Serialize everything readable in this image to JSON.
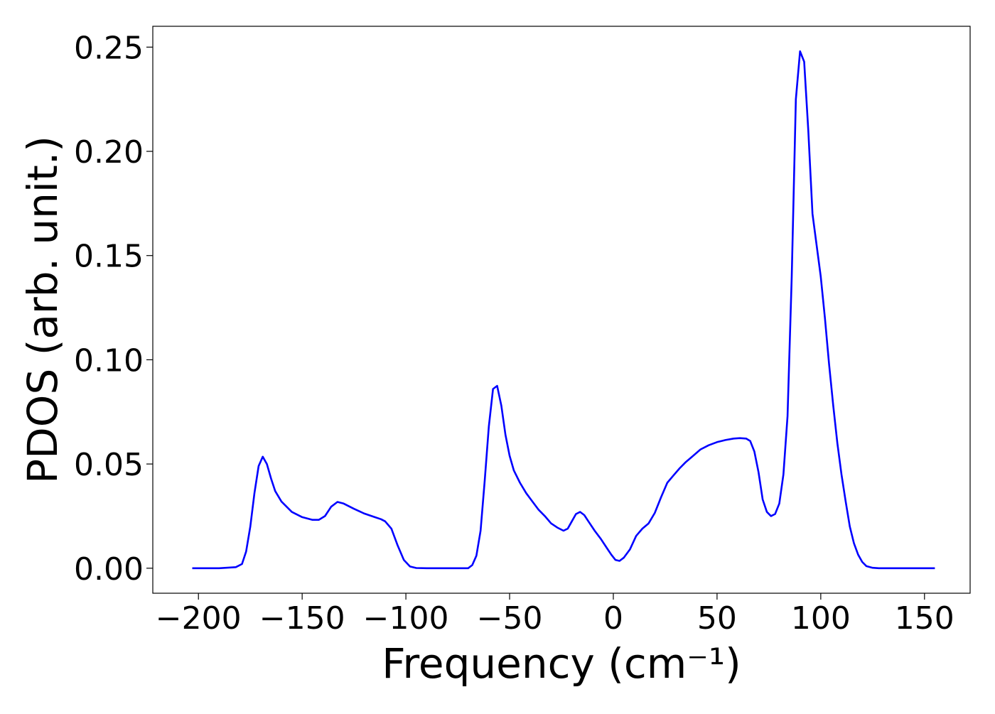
{
  "chart_data": {
    "type": "line",
    "title": "",
    "xlabel": "Frequency (cm⁻¹)",
    "ylabel": "PDOS (arb. unit.)",
    "xlim": [
      -222,
      172
    ],
    "ylim": [
      -0.012,
      0.26
    ],
    "xticks": [
      -200,
      -150,
      -100,
      -50,
      0,
      50,
      100,
      150
    ],
    "xtick_labels": [
      "−200",
      "−150",
      "−100",
      "−50",
      "0",
      "50",
      "100",
      "150"
    ],
    "yticks": [
      0.0,
      0.05,
      0.1,
      0.15,
      0.2,
      0.25
    ],
    "ytick_labels": [
      "0.00",
      "0.05",
      "0.10",
      "0.15",
      "0.20",
      "0.25"
    ],
    "grid": false,
    "legend": "none",
    "series": [
      {
        "color": "#0000ff",
        "x": [
          -203,
          -190,
          -182,
          -179,
          -177,
          -175,
          -173,
          -171,
          -169,
          -167,
          -165,
          -163,
          -160,
          -155,
          -150,
          -145,
          -142,
          -139,
          -136,
          -133,
          -130,
          -125,
          -120,
          -115,
          -112,
          -110,
          -107,
          -104,
          -101,
          -98,
          -95,
          -90,
          -80,
          -70,
          -68,
          -66,
          -64,
          -62,
          -60,
          -58,
          -56,
          -54,
          -52,
          -50,
          -48,
          -45,
          -42,
          -39,
          -36,
          -33,
          -30,
          -27,
          -24,
          -22,
          -20,
          -18,
          -16,
          -14,
          -12,
          -9,
          -6,
          -3,
          -1,
          1,
          3,
          5,
          8,
          11,
          14,
          17,
          20,
          23,
          26,
          29,
          32,
          35,
          38,
          42,
          46,
          50,
          54,
          58,
          61,
          64,
          66,
          68,
          70,
          72,
          74,
          76,
          78,
          80,
          82,
          84,
          86,
          88,
          90,
          92,
          94,
          96,
          98,
          100,
          102,
          104,
          106,
          108,
          110,
          112,
          114,
          116,
          118,
          120,
          122,
          125,
          128,
          132,
          140,
          155
        ],
        "y": [
          0.0,
          0.0,
          0.0005,
          0.002,
          0.008,
          0.02,
          0.036,
          0.049,
          0.0535,
          0.05,
          0.043,
          0.037,
          0.032,
          0.027,
          0.0245,
          0.0232,
          0.0232,
          0.025,
          0.0295,
          0.0318,
          0.031,
          0.0285,
          0.0262,
          0.0245,
          0.0235,
          0.0225,
          0.019,
          0.011,
          0.004,
          0.0008,
          0.0001,
          0.0,
          0.0,
          0.0,
          0.0015,
          0.006,
          0.018,
          0.042,
          0.068,
          0.086,
          0.0875,
          0.078,
          0.064,
          0.054,
          0.047,
          0.041,
          0.036,
          0.032,
          0.028,
          0.025,
          0.0215,
          0.0195,
          0.018,
          0.019,
          0.0225,
          0.026,
          0.027,
          0.0255,
          0.0225,
          0.018,
          0.014,
          0.0095,
          0.0065,
          0.004,
          0.0035,
          0.005,
          0.009,
          0.0155,
          0.019,
          0.0215,
          0.0265,
          0.034,
          0.041,
          0.0445,
          0.048,
          0.051,
          0.0535,
          0.057,
          0.059,
          0.0605,
          0.0615,
          0.0622,
          0.0624,
          0.0622,
          0.061,
          0.056,
          0.046,
          0.033,
          0.027,
          0.025,
          0.026,
          0.031,
          0.045,
          0.073,
          0.14,
          0.225,
          0.248,
          0.243,
          0.21,
          0.17,
          0.155,
          0.14,
          0.12,
          0.098,
          0.078,
          0.06,
          0.045,
          0.032,
          0.02,
          0.012,
          0.0065,
          0.003,
          0.001,
          0.0002,
          0.0,
          0.0,
          0.0,
          0.0
        ]
      }
    ]
  }
}
